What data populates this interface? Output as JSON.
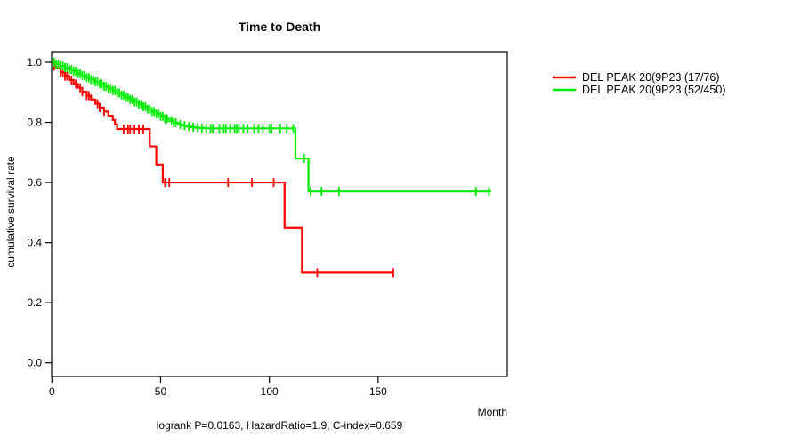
{
  "chart_data": {
    "type": "line",
    "subtype": "kaplan-meier-step",
    "title": "Time to Death",
    "xlabel": "Month",
    "ylabel": "cumulative survival rate",
    "footer": "logrank P=0.0163, HazardRatio=1.9, C-index=0.659",
    "xlim": [
      0,
      209
    ],
    "ylim": [
      0,
      1.04
    ],
    "x_ticks": [
      "0",
      "50",
      "100",
      "150"
    ],
    "x_tick_values": [
      0,
      50,
      100,
      150
    ],
    "y_ticks": [
      "0.0",
      "0.2",
      "0.4",
      "0.6",
      "0.8",
      "1.0"
    ],
    "y_tick_values": [
      0,
      0.2,
      0.4,
      0.6,
      0.8,
      1.0
    ],
    "grid": false,
    "legend_position": "right-outside",
    "axis_color": "#000000",
    "series": [
      {
        "name": "DEL PEAK 20(9P23 (17/76)",
        "color": "#ff0000",
        "end_month": 157,
        "steps": [
          [
            0,
            1.0
          ],
          [
            1,
            0.987
          ],
          [
            2,
            0.98
          ],
          [
            4,
            0.967
          ],
          [
            6,
            0.954
          ],
          [
            8,
            0.941
          ],
          [
            10,
            0.928
          ],
          [
            12,
            0.915
          ],
          [
            14,
            0.902
          ],
          [
            16,
            0.889
          ],
          [
            18,
            0.876
          ],
          [
            20,
            0.862
          ],
          [
            22,
            0.849
          ],
          [
            24,
            0.836
          ],
          [
            26,
            0.822
          ],
          [
            28,
            0.808
          ],
          [
            29,
            0.793
          ],
          [
            30,
            0.778
          ],
          [
            45,
            0.72
          ],
          [
            48,
            0.66
          ],
          [
            51,
            0.6
          ],
          [
            107,
            0.45
          ],
          [
            115,
            0.3
          ]
        ],
        "censor_months": [
          1,
          4,
          5,
          6,
          7,
          9,
          11,
          13,
          14,
          16,
          17,
          21,
          22,
          24,
          33,
          35,
          36,
          38,
          40,
          42,
          52,
          54,
          81,
          92,
          102,
          122,
          157
        ]
      },
      {
        "name": "DEL PEAK 20(9P23 (52/450)",
        "color": "#00ee00",
        "end_month": 202,
        "steps": [
          [
            0,
            1.0
          ],
          [
            2,
            0.994
          ],
          [
            4,
            0.988
          ],
          [
            6,
            0.982
          ],
          [
            8,
            0.976
          ],
          [
            10,
            0.97
          ],
          [
            12,
            0.963
          ],
          [
            14,
            0.956
          ],
          [
            16,
            0.949
          ],
          [
            18,
            0.942
          ],
          [
            20,
            0.935
          ],
          [
            22,
            0.928
          ],
          [
            24,
            0.92
          ],
          [
            26,
            0.913
          ],
          [
            28,
            0.906
          ],
          [
            30,
            0.898
          ],
          [
            32,
            0.891
          ],
          [
            34,
            0.883
          ],
          [
            36,
            0.876
          ],
          [
            38,
            0.868
          ],
          [
            40,
            0.86
          ],
          [
            42,
            0.852
          ],
          [
            44,
            0.844
          ],
          [
            46,
            0.836
          ],
          [
            48,
            0.828
          ],
          [
            50,
            0.82
          ],
          [
            52,
            0.812
          ],
          [
            54,
            0.805
          ],
          [
            56,
            0.799
          ],
          [
            58,
            0.793
          ],
          [
            60,
            0.789
          ],
          [
            62,
            0.786
          ],
          [
            64,
            0.784
          ],
          [
            66,
            0.782
          ],
          [
            68,
            0.781
          ],
          [
            70,
            0.78
          ],
          [
            112,
            0.68
          ],
          [
            118,
            0.57
          ]
        ],
        "censor_months": [
          1,
          2,
          3,
          4,
          5,
          6,
          7,
          8,
          9,
          10,
          11,
          12,
          13,
          14,
          15,
          16,
          17,
          18,
          19,
          20,
          21,
          22,
          23,
          24,
          25,
          26,
          27,
          28,
          29,
          30,
          31,
          32,
          33,
          34,
          35,
          36,
          37,
          38,
          39,
          40,
          41,
          42,
          43,
          44,
          45,
          46,
          47,
          48,
          49,
          50,
          51,
          52,
          53,
          55,
          56,
          57,
          59,
          61,
          63,
          65,
          67,
          69,
          71,
          73,
          74,
          77,
          79,
          80,
          82,
          84,
          85,
          86,
          88,
          90,
          93,
          95,
          97,
          100,
          101,
          105,
          108,
          111,
          116,
          119,
          124,
          132,
          195,
          201
        ]
      }
    ]
  }
}
